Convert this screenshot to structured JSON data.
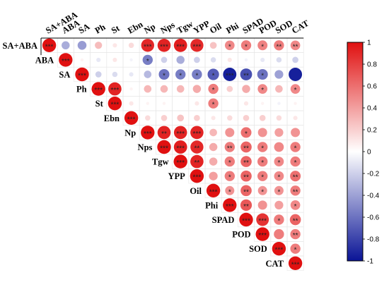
{
  "chart_data": {
    "type": "heatmap",
    "subtype": "correlation-circles-upper-triangle",
    "variables": [
      "SA+ABA",
      "ABA",
      "SA",
      "Ph",
      "St",
      "Ebn",
      "Np",
      "Nps",
      "Tgw",
      "YPP",
      "Oil",
      "Phi",
      "SPAD",
      "POD",
      "SOD",
      "CAT"
    ],
    "matrix": [
      [
        1.0,
        -0.35,
        -0.42,
        0.28,
        0.1,
        0.15,
        0.9,
        0.92,
        0.94,
        0.9,
        0.25,
        0.5,
        0.55,
        0.52,
        0.55,
        0.5
      ],
      [
        null,
        1.0,
        0.05,
        -0.1,
        0.1,
        -0.05,
        -0.55,
        -0.2,
        -0.35,
        -0.2,
        -0.15,
        0.1,
        -0.05,
        -0.1,
        -0.15,
        -0.2
      ],
      [
        null,
        null,
        1.0,
        -0.2,
        -0.15,
        -0.1,
        -0.3,
        -0.6,
        -0.55,
        -0.55,
        -0.7,
        -0.95,
        -0.75,
        -0.6,
        -0.4,
        -0.95
      ],
      [
        null,
        null,
        null,
        1.0,
        0.92,
        0.05,
        0.3,
        0.3,
        0.3,
        0.35,
        0.55,
        0.2,
        0.35,
        0.5,
        0.3,
        0.5
      ],
      [
        null,
        null,
        null,
        null,
        1.0,
        0.1,
        0.05,
        0.05,
        0.0,
        0.1,
        0.55,
        0.0,
        0.1,
        0.05,
        -0.05,
        0.05
      ],
      [
        null,
        null,
        null,
        null,
        null,
        1.0,
        0.15,
        0.2,
        0.25,
        0.2,
        0.1,
        0.15,
        0.2,
        0.2,
        0.15,
        0.1
      ],
      [
        null,
        null,
        null,
        null,
        null,
        null,
        1.0,
        0.92,
        0.92,
        0.92,
        0.3,
        0.45,
        0.6,
        0.45,
        0.4,
        0.45
      ],
      [
        null,
        null,
        null,
        null,
        null,
        null,
        null,
        1.0,
        0.94,
        0.9,
        0.35,
        0.55,
        0.65,
        0.55,
        0.5,
        0.55
      ],
      [
        null,
        null,
        null,
        null,
        null,
        null,
        null,
        null,
        1.0,
        0.92,
        0.35,
        0.55,
        0.65,
        0.55,
        0.5,
        0.55
      ],
      [
        null,
        null,
        null,
        null,
        null,
        null,
        null,
        null,
        null,
        1.0,
        0.4,
        0.55,
        0.65,
        0.55,
        0.5,
        0.6
      ],
      [
        null,
        null,
        null,
        null,
        null,
        null,
        null,
        null,
        null,
        null,
        1.0,
        0.45,
        0.65,
        0.45,
        0.45,
        0.55
      ],
      [
        null,
        null,
        null,
        null,
        null,
        null,
        null,
        null,
        null,
        null,
        null,
        1.0,
        0.7,
        0.45,
        0.4,
        0.5
      ],
      [
        null,
        null,
        null,
        null,
        null,
        null,
        null,
        null,
        null,
        null,
        null,
        null,
        1.0,
        0.85,
        0.55,
        0.65
      ],
      [
        null,
        null,
        null,
        null,
        null,
        null,
        null,
        null,
        null,
        null,
        null,
        null,
        null,
        1.0,
        0.55,
        0.55
      ],
      [
        null,
        null,
        null,
        null,
        null,
        null,
        null,
        null,
        null,
        null,
        null,
        null,
        null,
        null,
        1.0,
        0.55
      ],
      [
        null,
        null,
        null,
        null,
        null,
        null,
        null,
        null,
        null,
        null,
        null,
        null,
        null,
        null,
        null,
        1.0
      ]
    ],
    "significance": [
      [
        "***",
        "",
        "",
        "",
        "",
        "",
        "***",
        "***",
        "***",
        "***",
        "",
        "*",
        "*",
        "*",
        "**",
        "**"
      ],
      [
        "",
        "***",
        "",
        "",
        "",
        "",
        "*",
        "",
        "",
        "",
        "",
        "",
        "",
        "",
        "",
        ""
      ],
      [
        "",
        "",
        "***",
        "",
        "",
        "",
        "",
        "*",
        "*",
        "*",
        "*",
        "***",
        "**",
        "*",
        "",
        ""
      ],
      [
        "",
        "",
        "",
        "***",
        "***",
        "",
        "",
        "",
        "",
        "",
        "*",
        "",
        "",
        "*",
        "",
        "*"
      ],
      [
        "",
        "",
        "",
        "",
        "***",
        "",
        "",
        "",
        "",
        "",
        "*",
        "",
        "",
        "",
        "",
        ""
      ],
      [
        "",
        "",
        "",
        "",
        "",
        "***",
        "",
        "",
        "",
        "",
        "",
        "",
        "",
        "",
        "",
        ""
      ],
      [
        "",
        "",
        "",
        "",
        "",
        "",
        "***",
        "**",
        "***",
        "***",
        "",
        "",
        "*",
        "",
        "",
        ""
      ],
      [
        "",
        "",
        "",
        "",
        "",
        "",
        "",
        "***",
        "***",
        "**",
        "",
        "**",
        "**",
        "*",
        "",
        "*"
      ],
      [
        "",
        "",
        "",
        "",
        "",
        "",
        "",
        "",
        "***",
        "**",
        "",
        "*",
        "**",
        "*",
        "*",
        "*"
      ],
      [
        "",
        "",
        "",
        "",
        "",
        "",
        "",
        "",
        "",
        "***",
        "",
        "*",
        "**",
        "*",
        "*",
        "**"
      ],
      [
        "",
        "",
        "",
        "",
        "",
        "",
        "",
        "",
        "",
        "",
        "***",
        "*",
        "**",
        "*",
        "*",
        "**"
      ],
      [
        "",
        "",
        "",
        "",
        "",
        "",
        "",
        "",
        "",
        "",
        "",
        "***",
        "**",
        "",
        "",
        "*"
      ],
      [
        "",
        "",
        "",
        "",
        "",
        "",
        "",
        "",
        "",
        "",
        "",
        "",
        "***",
        "***",
        "*",
        "**"
      ],
      [
        "",
        "",
        "",
        "",
        "",
        "",
        "",
        "",
        "",
        "",
        "",
        "",
        "",
        "***",
        "",
        "**"
      ],
      [
        "",
        "",
        "",
        "",
        "",
        "",
        "",
        "",
        "",
        "",
        "",
        "",
        "",
        "",
        "***",
        "*"
      ],
      [
        "",
        "",
        "",
        "",
        "",
        "",
        "",
        "",
        "",
        "",
        "",
        "",
        "",
        "",
        "",
        "***"
      ]
    ],
    "colorbar": {
      "range": [
        -1,
        1
      ],
      "ticks": [
        "1",
        "0.8",
        "0.6",
        "0.4",
        "0.2",
        "0",
        "-0.2",
        "-0.4",
        "-0.6",
        "-0.8",
        "-1"
      ],
      "tick_values": [
        1,
        0.8,
        0.6,
        0.4,
        0.2,
        0,
        -0.2,
        -0.4,
        -0.6,
        -0.8,
        -1
      ],
      "colors": {
        "negative": "#0a1496",
        "zero": "#ffffff",
        "positive": "#e01010"
      }
    },
    "grid": true,
    "legend": "right"
  }
}
